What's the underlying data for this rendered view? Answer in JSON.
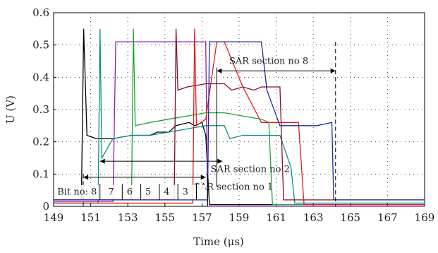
{
  "chart_data": {
    "type": "line",
    "xlabel": "Time (μs)",
    "ylabel": "U (V)",
    "xlim": [
      149,
      169
    ],
    "ylim": [
      0,
      0.6
    ],
    "x_ticks": [
      149,
      151,
      153,
      155,
      157,
      159,
      161,
      163,
      165,
      167,
      169
    ],
    "y_ticks": [
      0,
      0.1,
      0.2,
      0.3,
      0.4,
      0.5,
      0.6
    ],
    "grid": true,
    "colors": [
      "#000000",
      "#0a8f8a",
      "#8b1fb0",
      "#21a23a",
      "#8b0a2a",
      "#e01c1c",
      "#1c2a9a"
    ],
    "series": [
      {
        "values": [
          [
            149,
            0.02
          ],
          [
            150.5,
            0.02
          ],
          [
            150.62,
            0.55
          ],
          [
            150.8,
            0.22
          ],
          [
            151.3,
            0.21
          ],
          [
            151.4,
            0.21
          ],
          [
            152.2,
            0.21
          ],
          [
            153.2,
            0.22
          ],
          [
            154.2,
            0.22
          ],
          [
            154.6,
            0.23
          ],
          [
            155.2,
            0.23
          ],
          [
            155.6,
            0.25
          ],
          [
            156.3,
            0.26
          ],
          [
            156.6,
            0.25
          ],
          [
            157.0,
            0.26
          ],
          [
            157.2,
            0.22
          ],
          [
            157.4,
            0.005
          ],
          [
            169,
            0.005
          ]
        ]
      },
      {
        "values": [
          [
            149,
            0.01
          ],
          [
            151.4,
            0.01
          ],
          [
            151.5,
            0.55
          ],
          [
            151.6,
            0.15
          ],
          [
            152.2,
            0.21
          ],
          [
            153.2,
            0.22
          ],
          [
            154.2,
            0.22
          ],
          [
            155.2,
            0.23
          ],
          [
            156.2,
            0.24
          ],
          [
            157.2,
            0.25
          ],
          [
            158.2,
            0.25
          ],
          [
            158.5,
            0.21
          ],
          [
            159.2,
            0.22
          ],
          [
            160.2,
            0.22
          ],
          [
            161.2,
            0.22
          ],
          [
            161.8,
            0.12
          ],
          [
            162.0,
            0.01
          ],
          [
            169,
            0.01
          ]
        ]
      },
      {
        "values": [
          [
            149,
            0.015
          ],
          [
            152.2,
            0.015
          ],
          [
            152.35,
            0.51
          ],
          [
            153.2,
            0.51
          ],
          [
            153.4,
            0.51
          ],
          [
            154.2,
            0.51
          ],
          [
            154.6,
            0.51
          ],
          [
            155.2,
            0.51
          ],
          [
            155.6,
            0.51
          ],
          [
            156.2,
            0.51
          ],
          [
            156.6,
            0.51
          ],
          [
            157.2,
            0.51
          ],
          [
            157.3,
            0.0
          ],
          [
            169,
            0.0
          ]
        ]
      },
      {
        "values": [
          [
            149,
            0.02
          ],
          [
            153.2,
            0.02
          ],
          [
            153.3,
            0.55
          ],
          [
            153.4,
            0.25
          ],
          [
            154.2,
            0.26
          ],
          [
            155.2,
            0.27
          ],
          [
            156.2,
            0.28
          ],
          [
            157.2,
            0.29
          ],
          [
            158.2,
            0.29
          ],
          [
            159.2,
            0.28
          ],
          [
            160.2,
            0.27
          ],
          [
            160.6,
            0.26
          ],
          [
            160.8,
            0.005
          ],
          [
            169,
            0.005
          ]
        ]
      },
      {
        "values": [
          [
            149,
            0.02
          ],
          [
            155.5,
            0.02
          ],
          [
            155.6,
            0.55
          ],
          [
            155.7,
            0.36
          ],
          [
            156.2,
            0.37
          ],
          [
            157.2,
            0.38
          ],
          [
            158.2,
            0.38
          ],
          [
            158.6,
            0.36
          ],
          [
            159.2,
            0.37
          ],
          [
            159.8,
            0.36
          ],
          [
            160.2,
            0.37
          ],
          [
            161.2,
            0.37
          ],
          [
            161.4,
            0.02
          ],
          [
            169,
            0.02
          ]
        ]
      },
      {
        "values": [
          [
            149,
            0.01
          ],
          [
            156.5,
            0.01
          ],
          [
            156.6,
            0.55
          ],
          [
            156.7,
            0.25
          ],
          [
            157.2,
            0.27
          ],
          [
            157.8,
            0.51
          ],
          [
            158.2,
            0.51
          ],
          [
            159.2,
            0.37
          ],
          [
            160.2,
            0.26
          ],
          [
            161.2,
            0.26
          ],
          [
            162.2,
            0.26
          ],
          [
            162.5,
            0.005
          ],
          [
            169,
            0.005
          ]
        ]
      },
      {
        "values": [
          [
            149,
            0.02
          ],
          [
            157.3,
            0.02
          ],
          [
            157.4,
            0.51
          ],
          [
            158.2,
            0.51
          ],
          [
            159.2,
            0.51
          ],
          [
            160.2,
            0.51
          ],
          [
            160.5,
            0.36
          ],
          [
            161.2,
            0.25
          ],
          [
            162.2,
            0.25
          ],
          [
            163.2,
            0.25
          ],
          [
            164.0,
            0.26
          ],
          [
            164.1,
            0.02
          ],
          [
            169,
            0.02
          ]
        ]
      }
    ],
    "annotations": {
      "bit_label": "Bit no: 8",
      "bits": [
        "7",
        "6",
        "5",
        "4",
        "3"
      ],
      "sar8": "SAR section no 8",
      "sar2": "SAR section no 2",
      "sar1": "SAR section no 1"
    }
  }
}
